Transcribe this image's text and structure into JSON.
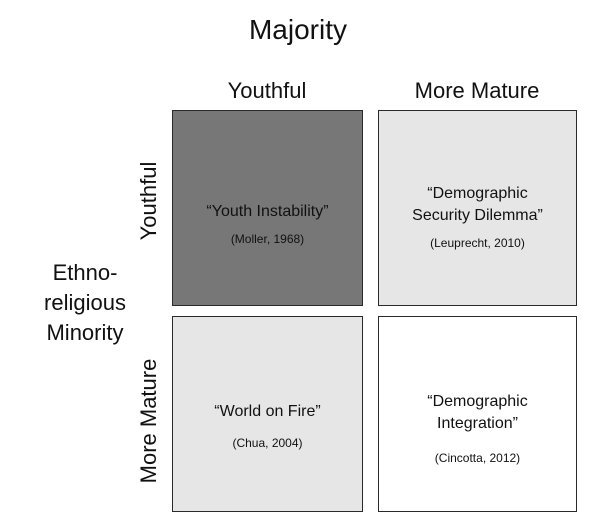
{
  "title": "Majority",
  "columns": [
    "Youthful",
    "More Mature"
  ],
  "rows": [
    "Youthful",
    "More Mature"
  ],
  "side_label": [
    "Ethno-",
    "religious",
    "Minority"
  ],
  "cells": [
    {
      "title_lines": [
        "“Youth Instability”"
      ],
      "citation": "(Moller, 1968)",
      "fill": "#777777"
    },
    {
      "title_lines": [
        "“Demographic",
        "Security Dilemma”"
      ],
      "citation": "(Leuprecht, 2010)",
      "fill": "#e6e6e6"
    },
    {
      "title_lines": [
        "“World on Fire”"
      ],
      "citation": "(Chua, 2004)",
      "fill": "#e6e6e6"
    },
    {
      "title_lines": [
        "“Demographic",
        "Integration”"
      ],
      "citation": "(Cincotta, 2012)",
      "fill": "#ffffff"
    }
  ]
}
